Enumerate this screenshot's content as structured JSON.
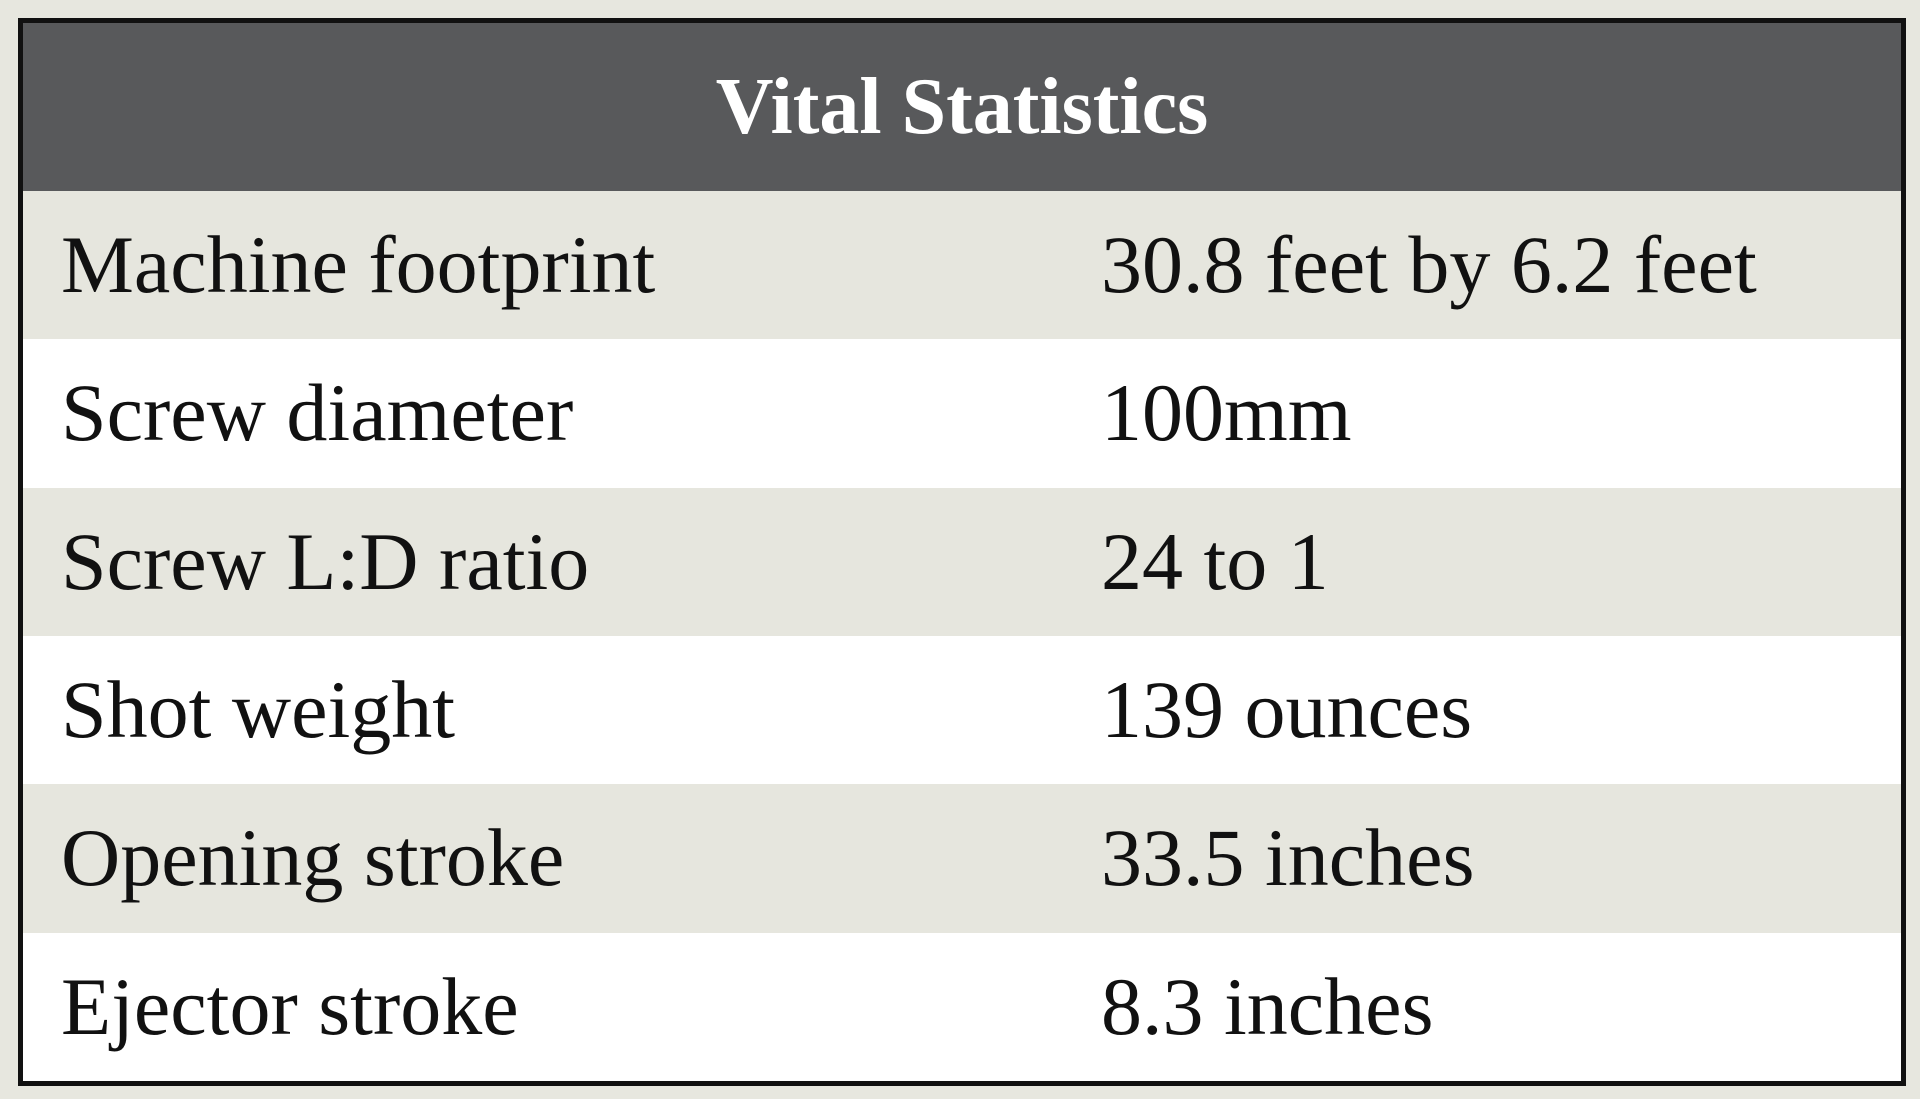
{
  "table": {
    "title": "Vital Statistics",
    "rows": [
      [
        "Machine footprint",
        "30.8 feet by 6.2 feet"
      ],
      [
        "Screw diameter",
        "100mm"
      ],
      [
        "Screw L:D ratio",
        "24 to 1"
      ],
      [
        "Shot weight",
        "139 ounces"
      ],
      [
        "Opening stroke",
        "33.5 inches"
      ],
      [
        "Ejector stroke",
        "8.3 inches"
      ]
    ]
  }
}
